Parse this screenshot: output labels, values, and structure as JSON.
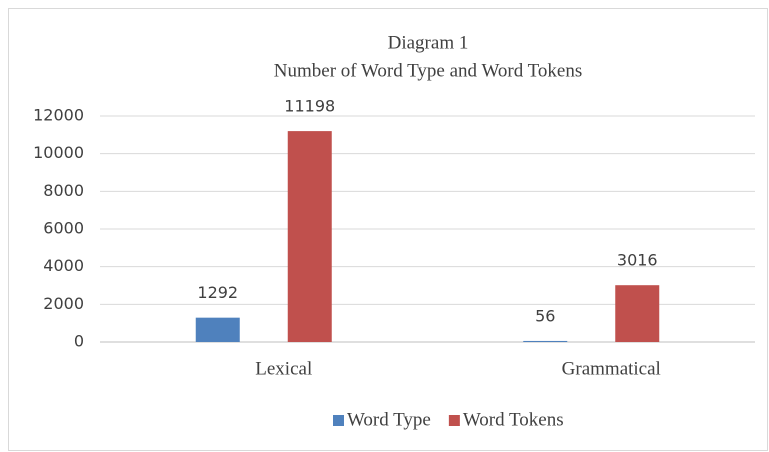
{
  "chart_data": {
    "type": "bar",
    "title": "Diagram 1",
    "subtitle": "Number of Word Type and Word Tokens",
    "categories": [
      "Lexical",
      "Grammatical"
    ],
    "series": [
      {
        "name": "Word Type",
        "color": "#4f81bd",
        "values": [
          1292,
          56
        ]
      },
      {
        "name": "Word Tokens",
        "color": "#c0504d",
        "values": [
          11198,
          3016
        ]
      }
    ],
    "ylim": [
      0,
      12000
    ],
    "yticks": [
      0,
      2000,
      4000,
      6000,
      8000,
      10000,
      12000
    ],
    "grid": true,
    "legend": "bottom"
  }
}
